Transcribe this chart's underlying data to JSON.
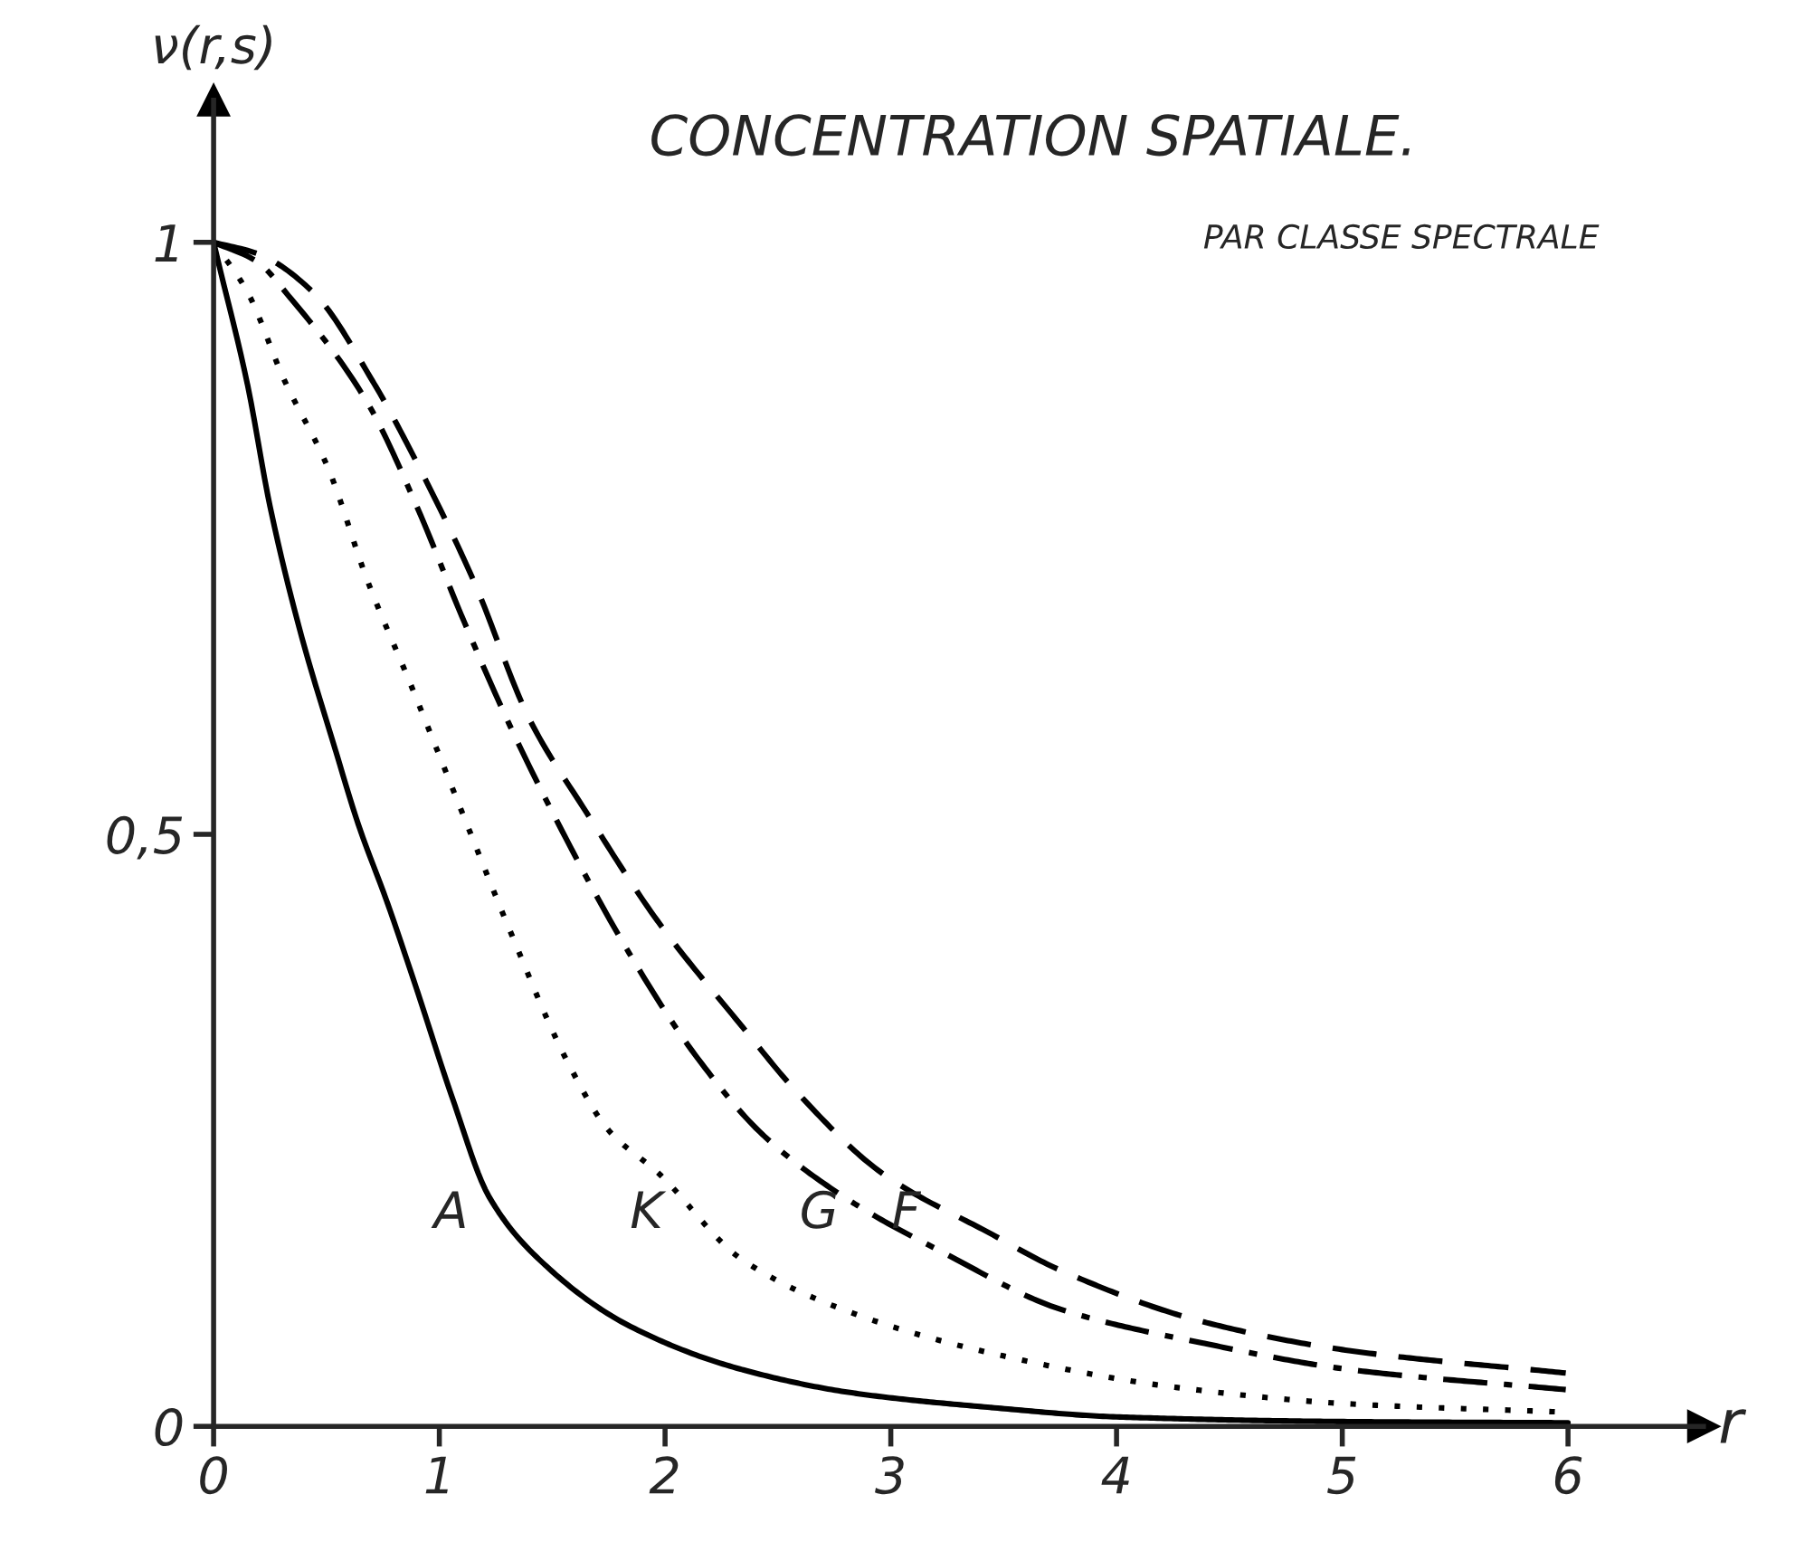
{
  "chart_data": {
    "type": "line",
    "title": "CONCENTRATION SPATIALE.",
    "subtitle": "PAR CLASSE SPECTRALE",
    "xlabel": "r",
    "ylabel": "ν(r,s)",
    "xlim": [
      0,
      6.6
    ],
    "ylim": [
      0,
      1.12
    ],
    "xticks": [
      0,
      1,
      2,
      3,
      4,
      5,
      6
    ],
    "yticks": [
      0,
      {
        "value": 0.5,
        "label": "0,5"
      },
      1
    ],
    "grid": false,
    "legend": false,
    "marker": "none",
    "series": [
      {
        "name": "A",
        "color": "#000000",
        "line_style": "solid",
        "x": [
          0,
          0.02,
          0.15,
          0.25,
          0.38,
          0.54,
          0.64,
          0.77,
          0.9,
          1.06,
          1.22,
          1.47,
          1.84,
          2.34,
          2.84,
          3.44,
          4.0,
          5.03,
          6.0
        ],
        "values": [
          1,
          0.984,
          0.88,
          0.777,
          0.674,
          0.571,
          0.509,
          0.442,
          0.369,
          0.276,
          0.194,
          0.136,
          0.085,
          0.048,
          0.028,
          0.016,
          0.008,
          0.004,
          0.003
        ]
      },
      {
        "name": "K",
        "color": "#000000",
        "line_style": "dotted",
        "x": [
          0,
          0.15,
          0.31,
          0.51,
          0.68,
          0.87,
          1.1,
          1.31,
          1.57,
          1.75,
          1.97,
          2.34,
          2.84,
          3.44,
          4.26,
          5.03,
          5.99
        ],
        "values": [
          1,
          0.958,
          0.885,
          0.808,
          0.715,
          0.628,
          0.519,
          0.42,
          0.307,
          0.25,
          0.214,
          0.141,
          0.095,
          0.062,
          0.033,
          0.019,
          0.012
        ]
      },
      {
        "name": "G",
        "color": "#000000",
        "line_style": "dashdot",
        "x": [
          0,
          0.19,
          0.34,
          0.68,
          0.9,
          1.1,
          1.3,
          1.5,
          1.84,
          2.14,
          2.44,
          2.84,
          3.23,
          3.75,
          4.39,
          5.03,
          5.99
        ],
        "values": [
          1,
          0.984,
          0.953,
          0.865,
          0.777,
          0.684,
          0.597,
          0.519,
          0.4,
          0.312,
          0.245,
          0.188,
          0.147,
          0.099,
          0.07,
          0.048,
          0.031
        ]
      },
      {
        "name": "F",
        "color": "#000000",
        "line_style": "dashed",
        "x": [
          0,
          0.2,
          0.44,
          0.71,
          0.9,
          1.15,
          1.4,
          1.65,
          1.97,
          2.34,
          2.59,
          2.96,
          3.44,
          3.75,
          4.39,
          5.03,
          5.99
        ],
        "values": [
          1,
          0.99,
          0.958,
          0.881,
          0.814,
          0.715,
          0.597,
          0.519,
          0.426,
          0.338,
          0.281,
          0.214,
          0.163,
          0.132,
          0.088,
          0.064,
          0.045
        ]
      }
    ]
  }
}
